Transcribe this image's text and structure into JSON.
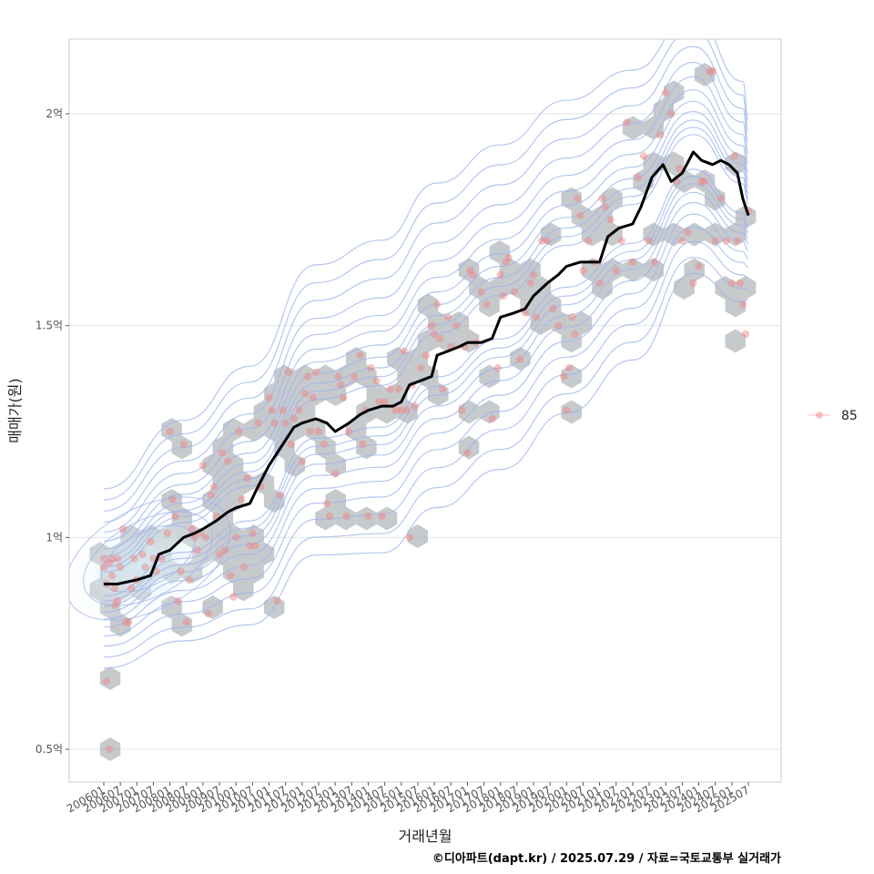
{
  "chart_data": {
    "type": "scatter",
    "xlabel": "거래년월",
    "ylabel": "매매가(원)",
    "credit": "©디아파트(dapt.kr) / 2025.07.29 / 자료=국토교통부 실거래가",
    "x_range": [
      "2006-01",
      "2025-07"
    ],
    "ylim_eok": [
      0.42,
      2.17
    ],
    "x_ticks": [
      "200601",
      "200607",
      "200701",
      "200707",
      "200801",
      "200807",
      "200901",
      "200907",
      "201001",
      "201007",
      "201101",
      "201107",
      "201201",
      "201207",
      "201301",
      "201307",
      "201401",
      "201407",
      "201501",
      "201507",
      "201601",
      "201607",
      "201701",
      "201707",
      "201801",
      "201807",
      "201901",
      "201907",
      "202001",
      "202007",
      "202101",
      "202107",
      "202201",
      "202207",
      "202301",
      "202307",
      "202401",
      "202407",
      "202501",
      "202507"
    ],
    "y_ticks": [
      {
        "value": 0.5,
        "label": "0.5억"
      },
      {
        "value": 1.0,
        "label": "1억"
      },
      {
        "value": 1.5,
        "label": "1.5억"
      },
      {
        "value": 2.0,
        "label": "2억"
      }
    ],
    "grid": true,
    "legend": {
      "placement": "right",
      "entries": [
        "85"
      ]
    },
    "colors": {
      "points": "#f08080",
      "hexbin": "#a9adb2",
      "contour": "#9db3ec",
      "trend": "#000000",
      "density_center": "#cfe8f6",
      "grid": "#e4e4e4",
      "panel_border": "#cccccc"
    },
    "series": [
      {
        "name": "85",
        "type": "scatter",
        "points": [
          [
            "2006-01",
            0.95
          ],
          [
            "2006-01",
            0.93
          ],
          [
            "2006-02",
            0.89
          ],
          [
            "2006-02",
            0.66
          ],
          [
            "2006-03",
            0.5
          ],
          [
            "2006-03",
            0.94
          ],
          [
            "2006-04",
            0.95
          ],
          [
            "2006-04",
            0.91
          ],
          [
            "2006-05",
            0.84
          ],
          [
            "2006-05",
            0.88
          ],
          [
            "2006-06",
            0.85
          ],
          [
            "2006-06",
            0.95
          ],
          [
            "2006-07",
            0.93
          ],
          [
            "2006-08",
            1.02
          ],
          [
            "2006-09",
            0.8
          ],
          [
            "2006-10",
            0.8
          ],
          [
            "2006-11",
            0.88
          ],
          [
            "2006-12",
            0.95
          ],
          [
            "2007-01",
            0.9
          ],
          [
            "2007-03",
            0.96
          ],
          [
            "2007-04",
            0.93
          ],
          [
            "2007-06",
            0.99
          ],
          [
            "2007-07",
            0.95
          ],
          [
            "2007-08",
            0.92
          ],
          [
            "2007-10",
            0.95
          ],
          [
            "2007-12",
            1.01
          ],
          [
            "2008-01",
            1.25
          ],
          [
            "2008-02",
            1.09
          ],
          [
            "2008-03",
            1.05
          ],
          [
            "2008-04",
            0.85
          ],
          [
            "2008-05",
            0.92
          ],
          [
            "2008-06",
            1.22
          ],
          [
            "2008-07",
            0.8
          ],
          [
            "2008-08",
            0.9
          ],
          [
            "2008-09",
            1.02
          ],
          [
            "2008-10",
            1.0
          ],
          [
            "2008-11",
            0.97
          ],
          [
            "2008-12",
            1.01
          ],
          [
            "2009-01",
            1.17
          ],
          [
            "2009-02",
            1.0
          ],
          [
            "2009-03",
            0.82
          ],
          [
            "2009-04",
            1.1
          ],
          [
            "2009-05",
            1.12
          ],
          [
            "2009-06",
            1.05
          ],
          [
            "2009-07",
            0.96
          ],
          [
            "2009-08",
            1.2
          ],
          [
            "2009-09",
            0.97
          ],
          [
            "2009-10",
            1.18
          ],
          [
            "2009-11",
            0.91
          ],
          [
            "2009-12",
            0.86
          ],
          [
            "2010-01",
            1.0
          ],
          [
            "2010-02",
            1.25
          ],
          [
            "2010-03",
            1.09
          ],
          [
            "2010-04",
            0.93
          ],
          [
            "2010-05",
            1.14
          ],
          [
            "2010-06",
            0.98
          ],
          [
            "2010-07",
            1.01
          ],
          [
            "2010-08",
            0.98
          ],
          [
            "2010-09",
            1.27
          ],
          [
            "2010-10",
            1.12
          ],
          [
            "2011-01",
            1.33
          ],
          [
            "2011-02",
            1.3
          ],
          [
            "2011-03",
            1.27
          ],
          [
            "2011-04",
            0.85
          ],
          [
            "2011-05",
            1.1
          ],
          [
            "2011-06",
            1.3
          ],
          [
            "2011-07",
            1.27
          ],
          [
            "2011-08",
            1.39
          ],
          [
            "2011-09",
            1.22
          ],
          [
            "2011-10",
            1.28
          ],
          [
            "2011-12",
            1.3
          ],
          [
            "2012-01",
            1.18
          ],
          [
            "2012-02",
            1.34
          ],
          [
            "2012-03",
            1.38
          ],
          [
            "2012-04",
            1.25
          ],
          [
            "2012-05",
            1.33
          ],
          [
            "2012-06",
            1.39
          ],
          [
            "2012-07",
            1.25
          ],
          [
            "2012-09",
            1.22
          ],
          [
            "2012-10",
            1.08
          ],
          [
            "2012-11",
            1.05
          ],
          [
            "2013-01",
            1.15
          ],
          [
            "2013-02",
            1.38
          ],
          [
            "2013-03",
            1.36
          ],
          [
            "2013-04",
            1.33
          ],
          [
            "2013-05",
            1.05
          ],
          [
            "2013-06",
            1.25
          ],
          [
            "2013-08",
            1.38
          ],
          [
            "2013-10",
            1.43
          ],
          [
            "2013-11",
            1.22
          ],
          [
            "2013-12",
            1.3
          ],
          [
            "2014-01",
            1.05
          ],
          [
            "2014-02",
            1.4
          ],
          [
            "2014-04",
            1.37
          ],
          [
            "2014-05",
            1.32
          ],
          [
            "2014-06",
            1.05
          ],
          [
            "2014-07",
            1.32
          ],
          [
            "2014-09",
            1.35
          ],
          [
            "2014-11",
            1.3
          ],
          [
            "2014-12",
            1.35
          ],
          [
            "2015-01",
            1.3
          ],
          [
            "2015-02",
            1.44
          ],
          [
            "2015-03",
            1.3
          ],
          [
            "2015-04",
            1.0
          ],
          [
            "2015-05",
            1.36
          ],
          [
            "2015-06",
            1.31
          ],
          [
            "2015-08",
            1.4
          ],
          [
            "2015-10",
            1.43
          ],
          [
            "2015-12",
            1.5
          ],
          [
            "2016-01",
            1.48
          ],
          [
            "2016-02",
            1.55
          ],
          [
            "2016-03",
            1.47
          ],
          [
            "2016-04",
            1.35
          ],
          [
            "2016-06",
            1.52
          ],
          [
            "2016-07",
            1.45
          ],
          [
            "2016-09",
            1.5
          ],
          [
            "2016-11",
            1.3
          ],
          [
            "2016-12",
            1.45
          ],
          [
            "2017-01",
            1.2
          ],
          [
            "2017-02",
            1.63
          ],
          [
            "2017-03",
            1.62
          ],
          [
            "2017-04",
            1.46
          ],
          [
            "2017-06",
            1.58
          ],
          [
            "2017-08",
            1.55
          ],
          [
            "2017-10",
            1.28
          ],
          [
            "2017-12",
            1.4
          ],
          [
            "2018-01",
            1.62
          ],
          [
            "2018-02",
            1.57
          ],
          [
            "2018-03",
            1.65
          ],
          [
            "2018-04",
            1.66
          ],
          [
            "2018-06",
            1.58
          ],
          [
            "2018-08",
            1.42
          ],
          [
            "2018-10",
            1.53
          ],
          [
            "2018-12",
            1.6
          ],
          [
            "2019-01",
            1.62
          ],
          [
            "2019-02",
            1.52
          ],
          [
            "2019-04",
            1.7
          ],
          [
            "2019-06",
            1.7
          ],
          [
            "2019-08",
            1.54
          ],
          [
            "2019-10",
            1.5
          ],
          [
            "2019-12",
            1.38
          ],
          [
            "2020-01",
            1.3
          ],
          [
            "2020-02",
            1.4
          ],
          [
            "2020-03",
            1.52
          ],
          [
            "2020-04",
            1.48
          ],
          [
            "2020-05",
            1.8
          ],
          [
            "2020-06",
            1.76
          ],
          [
            "2020-07",
            1.63
          ],
          [
            "2020-09",
            1.7
          ],
          [
            "2020-11",
            1.65
          ],
          [
            "2021-01",
            1.6
          ],
          [
            "2021-02",
            1.8
          ],
          [
            "2021-03",
            1.78
          ],
          [
            "2021-05",
            1.75
          ],
          [
            "2021-07",
            1.63
          ],
          [
            "2021-09",
            1.7
          ],
          [
            "2021-11",
            1.98
          ],
          [
            "2022-01",
            1.65
          ],
          [
            "2022-03",
            1.85
          ],
          [
            "2022-05",
            1.9
          ],
          [
            "2022-07",
            1.7
          ],
          [
            "2022-09",
            1.65
          ],
          [
            "2022-11",
            1.95
          ],
          [
            "2023-01",
            2.05
          ],
          [
            "2023-03",
            2.0
          ],
          [
            "2023-05",
            1.84
          ],
          [
            "2023-06",
            1.87
          ],
          [
            "2023-07",
            1.7
          ],
          [
            "2023-09",
            1.72
          ],
          [
            "2023-11",
            1.6
          ],
          [
            "2024-01",
            1.64
          ],
          [
            "2024-02",
            1.84
          ],
          [
            "2024-03",
            1.84
          ],
          [
            "2024-05",
            2.1
          ],
          [
            "2024-06",
            2.1
          ],
          [
            "2024-07",
            1.7
          ],
          [
            "2024-09",
            1.8
          ],
          [
            "2024-11",
            1.7
          ],
          [
            "2025-01",
            1.6
          ],
          [
            "2025-02",
            1.9
          ],
          [
            "2025-03",
            1.7
          ],
          [
            "2025-04",
            1.6
          ],
          [
            "2025-05",
            1.55
          ],
          [
            "2025-06",
            1.48
          ],
          [
            "2025-07",
            1.77
          ]
        ]
      },
      {
        "name": "",
        "type": "line",
        "points": [
          [
            "2006-01",
            0.89
          ],
          [
            "2006-06",
            0.89
          ],
          [
            "2007-01",
            0.9
          ],
          [
            "2007-06",
            0.91
          ],
          [
            "2007-09",
            0.96
          ],
          [
            "2008-01",
            0.97
          ],
          [
            "2008-06",
            1.0
          ],
          [
            "2008-10",
            1.01
          ],
          [
            "2009-01",
            1.02
          ],
          [
            "2009-06",
            1.04
          ],
          [
            "2009-10",
            1.06
          ],
          [
            "2010-01",
            1.07
          ],
          [
            "2010-06",
            1.08
          ],
          [
            "2010-09",
            1.12
          ],
          [
            "2011-01",
            1.17
          ],
          [
            "2011-06",
            1.22
          ],
          [
            "2011-10",
            1.26
          ],
          [
            "2012-01",
            1.27
          ],
          [
            "2012-06",
            1.28
          ],
          [
            "2012-10",
            1.27
          ],
          [
            "2013-01",
            1.25
          ],
          [
            "2013-06",
            1.27
          ],
          [
            "2013-10",
            1.29
          ],
          [
            "2014-01",
            1.3
          ],
          [
            "2014-06",
            1.31
          ],
          [
            "2014-10",
            1.31
          ],
          [
            "2015-01",
            1.32
          ],
          [
            "2015-04",
            1.36
          ],
          [
            "2015-08",
            1.37
          ],
          [
            "2015-12",
            1.38
          ],
          [
            "2016-02",
            1.43
          ],
          [
            "2016-06",
            1.44
          ],
          [
            "2016-10",
            1.45
          ],
          [
            "2017-01",
            1.46
          ],
          [
            "2017-06",
            1.46
          ],
          [
            "2017-10",
            1.47
          ],
          [
            "2018-01",
            1.52
          ],
          [
            "2018-06",
            1.53
          ],
          [
            "2018-10",
            1.54
          ],
          [
            "2019-01",
            1.57
          ],
          [
            "2019-06",
            1.6
          ],
          [
            "2019-10",
            1.62
          ],
          [
            "2020-01",
            1.64
          ],
          [
            "2020-06",
            1.65
          ],
          [
            "2020-10",
            1.65
          ],
          [
            "2021-01",
            1.65
          ],
          [
            "2021-04",
            1.71
          ],
          [
            "2021-08",
            1.73
          ],
          [
            "2022-01",
            1.74
          ],
          [
            "2022-04",
            1.78
          ],
          [
            "2022-08",
            1.85
          ],
          [
            "2022-12",
            1.88
          ],
          [
            "2023-03",
            1.84
          ],
          [
            "2023-07",
            1.86
          ],
          [
            "2023-11",
            1.91
          ],
          [
            "2024-02",
            1.89
          ],
          [
            "2024-06",
            1.88
          ],
          [
            "2024-09",
            1.89
          ],
          [
            "2024-12",
            1.88
          ],
          [
            "2025-03",
            1.86
          ],
          [
            "2025-05",
            1.8
          ],
          [
            "2025-07",
            1.76
          ]
        ]
      }
    ]
  }
}
